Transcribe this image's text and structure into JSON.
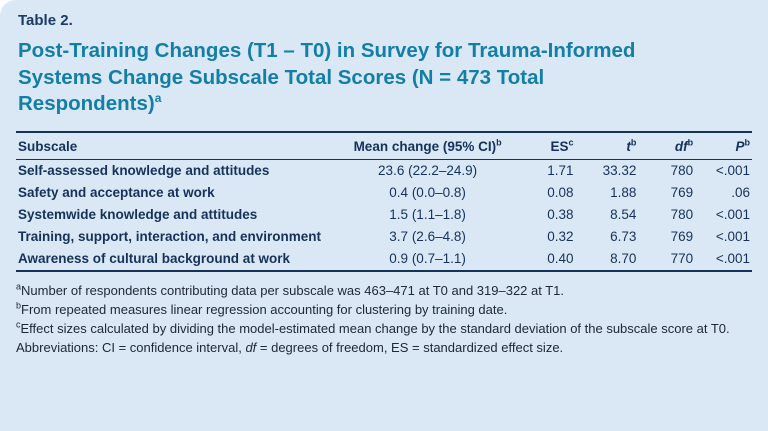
{
  "panel": {
    "table_label": "Table 2.",
    "title_lines": [
      "Post-Training Changes (T1 – T0) in Survey for Trauma-Informed",
      "Systems Change Subscale Total Scores (N = 473 Total",
      "Respondents)"
    ],
    "title_sup": "a"
  },
  "table": {
    "headers": [
      {
        "label": "Subscale",
        "sup": ""
      },
      {
        "label": "Mean change (95% CI)",
        "sup": "b"
      },
      {
        "label": "ES",
        "sup": "c"
      },
      {
        "label": "t",
        "sup": "b"
      },
      {
        "label": "df",
        "sup": "b"
      },
      {
        "label": "P",
        "sup": "b"
      }
    ],
    "rows": [
      {
        "subscale": "Self-assessed knowledge and attitudes",
        "mean_change": "23.6 (22.2–24.9)",
        "es": "1.71",
        "t": "33.32",
        "df": "780",
        "p": "<.001"
      },
      {
        "subscale": "Safety and acceptance at work",
        "mean_change": "0.4 (0.0–0.8)",
        "es": "0.08",
        "t": "1.88",
        "df": "769",
        "p": ".06"
      },
      {
        "subscale": "Systemwide knowledge and attitudes",
        "mean_change": "1.5 (1.1–1.8)",
        "es": "0.38",
        "t": "8.54",
        "df": "780",
        "p": "<.001"
      },
      {
        "subscale": "Training, support, interaction, and environment",
        "mean_change": "3.7 (2.6–4.8)",
        "es": "0.32",
        "t": "6.73",
        "df": "769",
        "p": "<.001"
      },
      {
        "subscale": "Awareness of cultural background at work",
        "mean_change": "0.9 (0.7–1.1)",
        "es": "0.40",
        "t": "8.70",
        "df": "770",
        "p": "<.001"
      }
    ]
  },
  "footnotes": {
    "a": {
      "sup": "a",
      "text": "Number of respondents contributing data per subscale was 463–471 at T0 and 319–322 at T1."
    },
    "b": {
      "sup": "b",
      "text": "From repeated measures linear regression accounting for clustering by training date."
    },
    "c": {
      "sup": "c",
      "text": "Effect sizes calculated by dividing the model-estimated mean change by the standard deviation of the subscale score at T0."
    },
    "abbrev": {
      "prefix": "Abbreviations: CI = confidence interval, ",
      "italic_df": "df",
      "suffix": " = degrees of freedom, ES = standardized effect size."
    }
  },
  "colors": {
    "background": "#d9e8f4",
    "title": "#137ea6",
    "dark_text": "#16325a",
    "rule": "#16325a"
  }
}
